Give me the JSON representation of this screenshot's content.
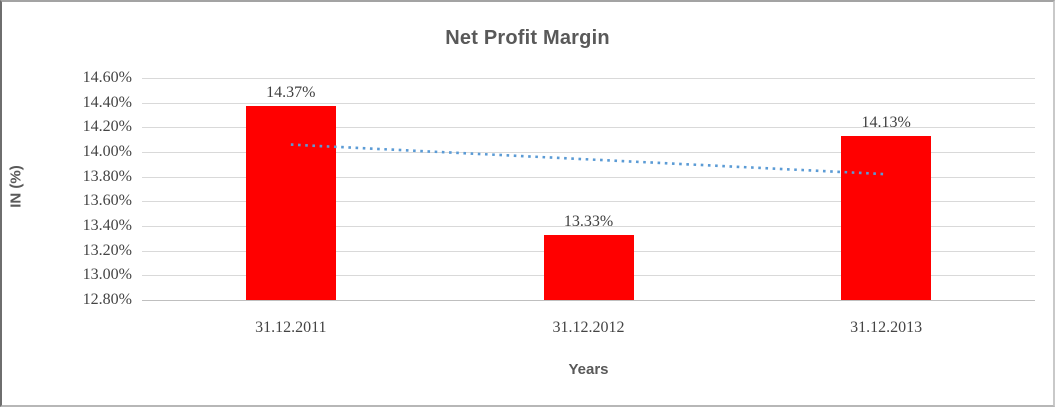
{
  "chart_data": {
    "type": "bar",
    "title": "Net Profit Margin",
    "xlabel": "Years",
    "ylabel": "IN (%)",
    "categories": [
      "31.12.2011",
      "31.12.2012",
      "31.12.2013"
    ],
    "values": [
      14.37,
      13.33,
      14.13
    ],
    "data_labels": [
      "14.37%",
      "13.33%",
      "14.13%"
    ],
    "yticks": [
      "14.60%",
      "14.40%",
      "14.20%",
      "14.00%",
      "13.80%",
      "13.60%",
      "13.40%",
      "13.20%",
      "13.00%",
      "12.80%"
    ],
    "ylim": [
      12.8,
      14.6
    ],
    "ytick_step": 0.2,
    "grid": true,
    "legend": "none",
    "bar_color": "#ff0000",
    "gridline_color": "#d9d9d9",
    "text_color": "#595959",
    "trendline": {
      "kind": "linear",
      "style": "dotted",
      "color": "#5b9bd5",
      "start_value": 14.06,
      "end_value": 13.82
    }
  }
}
